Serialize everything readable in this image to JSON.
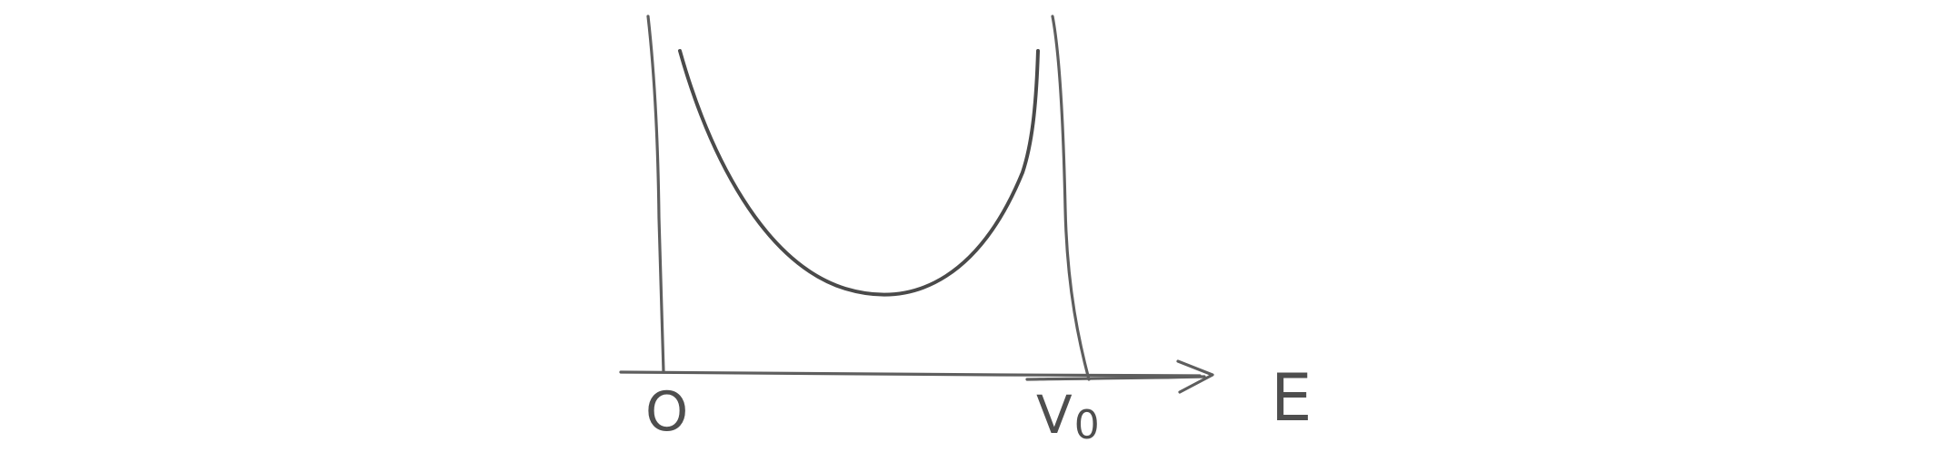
{
  "diagram": {
    "axis_label": "E",
    "origin_label": "O",
    "v0_label": {
      "main": "V",
      "sub": "0"
    }
  },
  "colors": {
    "stroke": "#5e5e5e",
    "curve": "#4a4a4a",
    "background": "#ffffff"
  }
}
